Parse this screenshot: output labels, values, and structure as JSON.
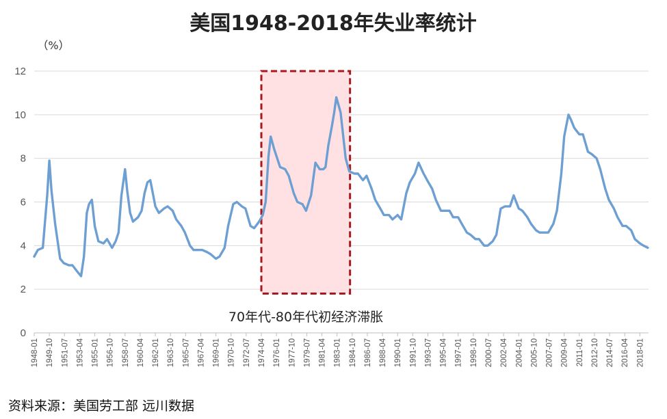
{
  "chart_data": {
    "type": "line",
    "title": "美国1948-2018年失业率统计",
    "ylabel": "（%）",
    "ylim": [
      0,
      12
    ],
    "yticks": [
      0,
      2,
      4,
      6,
      8,
      10,
      12
    ],
    "grid": true,
    "x_ticks": [
      "1948-01",
      "1949-10",
      "1951-07",
      "1953-04",
      "1955-01",
      "1956-10",
      "1958-07",
      "1960-04",
      "1962-01",
      "1963-10",
      "1965-07",
      "1967-04",
      "1969-01",
      "1970-10",
      "1972-07",
      "1974-04",
      "1976-01",
      "1977-10",
      "1979-07",
      "1981-04",
      "1983-01",
      "1984-10",
      "1986-07",
      "1988-04",
      "1990-01",
      "1991-10",
      "1993-07",
      "1995-04",
      "1997-01",
      "1998-10",
      "2000-07",
      "2002-04",
      "2004-01",
      "2005-10",
      "2007-07",
      "2009-04",
      "2011-01",
      "2012-10",
      "2014-07",
      "2016-04",
      "2018-01"
    ],
    "line_color": "#6e9fd2",
    "series": [
      {
        "x": [
          "1948-01",
          "1948-06",
          "1949-01",
          "1949-07",
          "1949-10",
          "1950-01",
          "1950-06",
          "1951-01",
          "1951-06",
          "1952-01",
          "1952-06",
          "1953-01",
          "1953-06",
          "1953-10",
          "1954-02",
          "1954-05",
          "1954-09",
          "1955-01",
          "1955-06",
          "1956-01",
          "1956-06",
          "1957-01",
          "1957-06",
          "1957-10",
          "1958-02",
          "1958-07",
          "1958-10",
          "1959-02",
          "1959-06",
          "1960-01",
          "1960-06",
          "1960-10",
          "1961-02",
          "1961-06",
          "1962-01",
          "1962-06",
          "1963-01",
          "1963-06",
          "1964-01",
          "1964-06",
          "1965-01",
          "1965-06",
          "1966-01",
          "1966-06",
          "1967-01",
          "1967-06",
          "1968-01",
          "1968-06",
          "1969-01",
          "1969-06",
          "1970-01",
          "1970-06",
          "1971-01",
          "1971-06",
          "1972-01",
          "1972-06",
          "1973-01",
          "1973-06",
          "1974-01",
          "1974-06",
          "1974-10",
          "1975-02",
          "1975-05",
          "1975-10",
          "1976-06",
          "1977-01",
          "1977-06",
          "1978-01",
          "1978-06",
          "1979-01",
          "1979-06",
          "1980-01",
          "1980-03",
          "1980-07",
          "1981-01",
          "1981-06",
          "1981-09",
          "1982-01",
          "1982-06",
          "1982-09",
          "1982-12",
          "1983-06",
          "1984-01",
          "1984-06",
          "1985-01",
          "1985-06",
          "1986-01",
          "1986-06",
          "1987-01",
          "1987-06",
          "1988-01",
          "1988-06",
          "1989-01",
          "1989-06",
          "1990-01",
          "1990-06",
          "1991-01",
          "1991-06",
          "1992-01",
          "1992-06",
          "1993-01",
          "1993-06",
          "1994-01",
          "1994-06",
          "1995-01",
          "1995-06",
          "1996-01",
          "1996-06",
          "1997-01",
          "1997-06",
          "1998-01",
          "1998-06",
          "1999-01",
          "1999-06",
          "2000-01",
          "2000-06",
          "2001-01",
          "2001-06",
          "2001-12",
          "2002-06",
          "2003-01",
          "2003-06",
          "2004-01",
          "2004-06",
          "2005-01",
          "2005-06",
          "2006-01",
          "2006-06",
          "2007-01",
          "2007-06",
          "2008-01",
          "2008-06",
          "2008-12",
          "2009-04",
          "2009-07",
          "2009-10",
          "2010-01",
          "2010-06",
          "2011-01",
          "2011-06",
          "2012-01",
          "2012-06",
          "2013-01",
          "2013-06",
          "2014-01",
          "2014-06",
          "2015-01",
          "2015-06",
          "2016-01",
          "2016-06",
          "2017-01",
          "2017-06",
          "2018-01",
          "2018-06",
          "2018-12"
        ],
        "y": [
          3.5,
          3.8,
          3.9,
          6.3,
          7.9,
          6.5,
          5.0,
          3.4,
          3.2,
          3.1,
          3.1,
          2.8,
          2.6,
          3.5,
          5.5,
          5.9,
          6.1,
          4.9,
          4.2,
          4.1,
          4.3,
          3.9,
          4.2,
          4.6,
          6.3,
          7.5,
          6.5,
          5.5,
          5.1,
          5.3,
          5.6,
          6.4,
          6.9,
          7.0,
          5.8,
          5.5,
          5.7,
          5.8,
          5.6,
          5.2,
          4.9,
          4.6,
          4.0,
          3.8,
          3.8,
          3.8,
          3.7,
          3.6,
          3.4,
          3.5,
          3.9,
          4.9,
          5.9,
          6.0,
          5.8,
          5.7,
          4.9,
          4.8,
          5.1,
          5.4,
          6.0,
          8.1,
          9.0,
          8.4,
          7.6,
          7.5,
          7.2,
          6.4,
          6.0,
          5.9,
          5.6,
          6.3,
          6.8,
          7.8,
          7.5,
          7.5,
          7.6,
          8.6,
          9.5,
          10.1,
          10.8,
          10.1,
          8.0,
          7.4,
          7.3,
          7.3,
          7.0,
          7.2,
          6.6,
          6.1,
          5.7,
          5.4,
          5.4,
          5.2,
          5.4,
          5.2,
          6.4,
          6.9,
          7.3,
          7.8,
          7.3,
          7.0,
          6.6,
          6.1,
          5.6,
          5.6,
          5.6,
          5.3,
          5.3,
          5.0,
          4.6,
          4.5,
          4.3,
          4.3,
          4.0,
          4.0,
          4.2,
          4.5,
          5.7,
          5.8,
          5.8,
          6.3,
          5.7,
          5.6,
          5.3,
          5.0,
          4.7,
          4.6,
          4.6,
          4.6,
          5.0,
          5.6,
          7.3,
          9.0,
          9.5,
          10.0,
          9.8,
          9.4,
          9.1,
          9.1,
          8.3,
          8.2,
          8.0,
          7.5,
          6.6,
          6.1,
          5.7,
          5.3,
          4.9,
          4.9,
          4.7,
          4.3,
          4.1,
          4.0,
          3.9
        ]
      }
    ],
    "highlight": {
      "x_start": "1974-04",
      "x_end": "1984-07",
      "y_start": 1.8,
      "y_end": 12
    },
    "annotation": "70年代-80年代初经济滞胀"
  },
  "source": "资料来源：美国劳工部  远川数据"
}
